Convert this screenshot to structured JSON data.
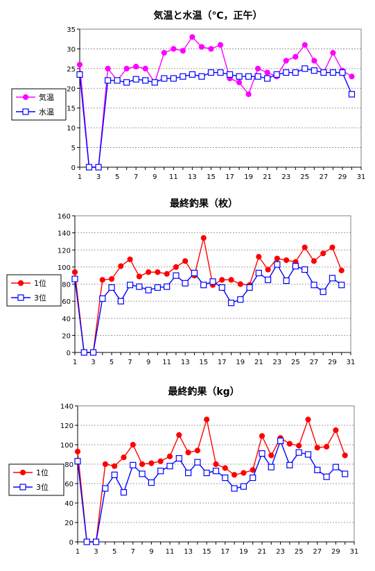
{
  "chart_data": [
    {
      "type": "line",
      "title": "気温と水温（℃，正午）",
      "xlabel": "",
      "ylabel": "",
      "x": [
        1,
        2,
        3,
        4,
        5,
        6,
        7,
        8,
        9,
        10,
        11,
        12,
        13,
        14,
        15,
        16,
        17,
        18,
        19,
        20,
        21,
        22,
        23,
        24,
        25,
        26,
        27,
        28,
        29,
        30
      ],
      "xlim": [
        1,
        31
      ],
      "ylim": [
        0,
        35
      ],
      "yticks": [
        0,
        5,
        10,
        15,
        20,
        25,
        30,
        35
      ],
      "xticks": [
        1,
        3,
        5,
        7,
        9,
        11,
        13,
        15,
        17,
        19,
        21,
        23,
        25,
        27,
        29,
        31
      ],
      "grid": true,
      "legend": "left",
      "series": [
        {
          "name": "気温",
          "color": "#ff00ff",
          "marker": "filled-circle",
          "values": [
            26,
            0,
            0,
            25,
            22,
            25,
            25.5,
            25,
            21.5,
            29,
            30,
            29.5,
            33,
            30.5,
            30,
            31,
            22.5,
            21.5,
            18.5,
            25,
            24,
            23,
            27,
            28,
            31,
            27,
            24,
            29,
            24.5,
            23
          ]
        },
        {
          "name": "水温",
          "color": "#0000ff",
          "marker": "open-square",
          "values": [
            23.5,
            0,
            0,
            22,
            22,
            21.5,
            22.3,
            22,
            21.5,
            22.5,
            22.5,
            23,
            23.5,
            23,
            24,
            24,
            23.5,
            23,
            23,
            23,
            22.5,
            23.5,
            24,
            24,
            25,
            24.5,
            24,
            24,
            24,
            18.5
          ]
        }
      ]
    },
    {
      "type": "line",
      "title": "最終釣果（枚）",
      "xlabel": "",
      "ylabel": "",
      "x": [
        1,
        2,
        3,
        4,
        5,
        6,
        7,
        8,
        9,
        10,
        11,
        12,
        13,
        14,
        15,
        16,
        17,
        18,
        19,
        20,
        21,
        22,
        23,
        24,
        25,
        26,
        27,
        28,
        29,
        30
      ],
      "xlim": [
        1,
        31
      ],
      "ylim": [
        0,
        160
      ],
      "yticks": [
        0,
        20,
        40,
        60,
        80,
        100,
        120,
        140,
        160
      ],
      "xticks": [
        1,
        3,
        5,
        7,
        9,
        11,
        13,
        15,
        17,
        19,
        21,
        23,
        25,
        27,
        29,
        31
      ],
      "grid": true,
      "legend": "left",
      "series": [
        {
          "name": "1位",
          "color": "#ff0000",
          "marker": "filled-circle",
          "values": [
            94,
            0,
            0,
            85,
            86,
            101,
            109,
            89,
            94,
            94,
            92,
            100,
            107,
            90,
            134,
            79,
            85,
            85,
            80,
            79,
            112,
            97,
            110,
            108,
            106,
            123,
            107,
            116,
            123,
            96
          ]
        },
        {
          "name": "3位",
          "color": "#0000ff",
          "marker": "open-square",
          "values": [
            86,
            0,
            0,
            63,
            76,
            60,
            79,
            77,
            73,
            76,
            77,
            90,
            81,
            93,
            79,
            83,
            76,
            58,
            62,
            76,
            93,
            85,
            103,
            84,
            101,
            97,
            79,
            71,
            87,
            79
          ]
        }
      ]
    },
    {
      "type": "line",
      "title": "最終釣果（kg）",
      "xlabel": "",
      "ylabel": "",
      "x": [
        1,
        2,
        3,
        4,
        5,
        6,
        7,
        8,
        9,
        10,
        11,
        12,
        13,
        14,
        15,
        16,
        17,
        18,
        19,
        20,
        21,
        22,
        23,
        24,
        25,
        26,
        27,
        28,
        29,
        30
      ],
      "xlim": [
        1,
        31
      ],
      "ylim": [
        0,
        140
      ],
      "yticks": [
        0,
        20,
        40,
        60,
        80,
        100,
        120,
        140
      ],
      "xticks": [
        1,
        3,
        5,
        7,
        9,
        11,
        13,
        15,
        17,
        19,
        21,
        23,
        25,
        27,
        29,
        31
      ],
      "grid": true,
      "legend": "left",
      "series": [
        {
          "name": "1位",
          "color": "#ff0000",
          "marker": "filled-circle",
          "values": [
            93,
            0,
            0,
            80,
            78,
            87,
            100,
            80,
            81,
            83,
            88,
            110,
            92,
            94,
            126,
            80,
            76,
            69,
            71,
            74,
            109,
            89,
            107,
            101,
            99,
            126,
            97,
            98,
            115,
            89
          ]
        },
        {
          "name": "3位",
          "color": "#0000ff",
          "marker": "open-square",
          "values": [
            83,
            0,
            0,
            55,
            69,
            51,
            79,
            70,
            61,
            73,
            78,
            86,
            71,
            82,
            71,
            73,
            66,
            55,
            57,
            66,
            91,
            77,
            104,
            79,
            92,
            90,
            74,
            67,
            77,
            70
          ]
        }
      ]
    }
  ]
}
